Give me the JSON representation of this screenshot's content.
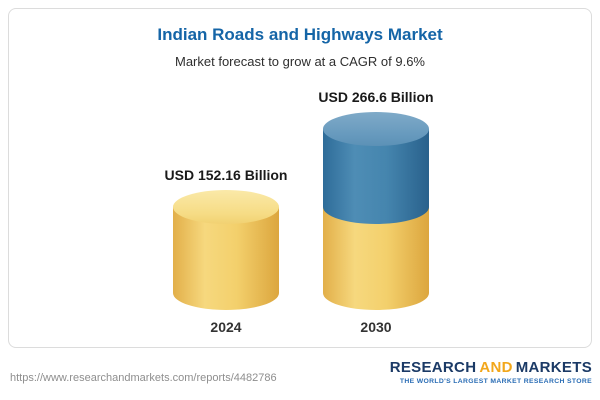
{
  "chart_data": {
    "type": "bar",
    "style": "3d-cylinder",
    "title": "Indian Roads and Highways Market",
    "subtitle": "Market forecast to grow at a CAGR of 9.6%",
    "categories": [
      "2024",
      "2030"
    ],
    "values": [
      152.16,
      266.6
    ],
    "bar_labels": [
      "USD 152.16 Billion",
      "USD 266.6 Billion"
    ],
    "unit": "USD Billion",
    "cagr_pct": 9.6,
    "grid": false,
    "legend": false,
    "colors": {
      "base_segment": "#f2cb63",
      "growth_segment": "#3b7ca8",
      "title": "#1565a7"
    }
  },
  "footer": {
    "url": "https://www.researchandmarkets.com/reports/4482786",
    "logo": {
      "research": "RESEARCH",
      "and": "AND",
      "markets": "MARKETS",
      "tagline": "THE WORLD'S LARGEST MARKET RESEARCH STORE",
      "colors": {
        "navy": "#1b3a66",
        "orange": "#f2a71b",
        "tagline_blue": "#2a6db5"
      }
    }
  }
}
